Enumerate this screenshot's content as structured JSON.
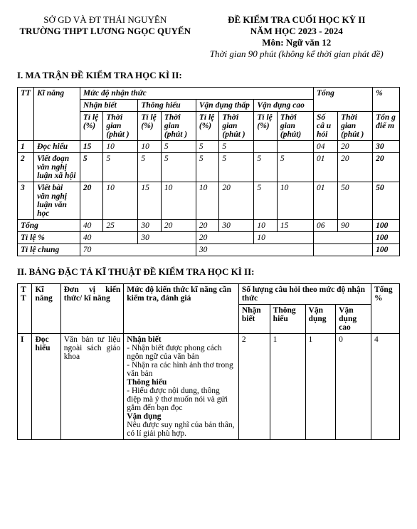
{
  "header": {
    "left_line1": "SỞ GD VÀ ĐT THÁI NGUYÊN",
    "left_line2": "TRƯỜNG THPT LƯƠNG NGỌC QUYẾN",
    "right_line1": "ĐỀ KIỂM TRA CUỐI HỌC  KỲ II",
    "right_line2": "NĂM HỌC 2023 - 2024",
    "right_line3": "Môn: Ngữ văn 12",
    "right_line4": "Thời gian 90 phút (không kể thời gian phát đề)"
  },
  "section1_title": "I. MA TRẬN ĐỀ KIỂM TRA HỌC KÌ II:",
  "t1": {
    "hdr_mucdo": "Mức độ nhận thức",
    "hdr_pct": "%",
    "hdr_nb": "Nhận biết",
    "hdr_th": "Thông hiểu",
    "hdr_vdt": "Vận   dụng thấp",
    "hdr_vdc": "Vận   dụng cao",
    "hdr_tong": "Tổng",
    "hdr_tongdiem": "Tổn g điể m",
    "col_tt": "TT",
    "col_kn": "Kĩ năng",
    "col_tile": "Tỉ lệ (%)",
    "col_tg": "Thời gian (phút )",
    "col_tg2": "Thời gian (phút)",
    "col_soc": "Số câ u hỏi",
    "rows": [
      {
        "tt": "1",
        "kn": "Đọc hiểu",
        "nb_tl": "15",
        "nb_tg": "10",
        "th_tl": "10",
        "th_tg": "5",
        "vdt_tl": "5",
        "vdt_tg": "5",
        "vdc_tl": "",
        "vdc_tg": "",
        "soc": "04",
        "tg": "20",
        "pct": "30"
      },
      {
        "tt": "2",
        "kn": "Viết đoạn văn nghị luận xã hội",
        "nb_tl": "5",
        "nb_tg": "5",
        "th_tl": "5",
        "th_tg": "5",
        "vdt_tl": "5",
        "vdt_tg": "5",
        "vdc_tl": "5",
        "vdc_tg": "5",
        "soc": "01",
        "tg": "20",
        "pct": "20"
      },
      {
        "tt": "3",
        "kn": "Viết bài văn nghị luận văn học",
        "nb_tl": "20",
        "nb_tg": "10",
        "th_tl": "15",
        "th_tg": "10",
        "vdt_tl": "10",
        "vdt_tg": "20",
        "vdc_tl": "5",
        "vdc_tg": "10",
        "soc": "01",
        "tg": "50",
        "pct": "50"
      }
    ],
    "tong_label": "Tổng",
    "tong": {
      "nb_tl": "40",
      "nb_tg": "25",
      "th_tl": "30",
      "th_tg": "20",
      "vdt_tl": "20",
      "vdt_tg": "30",
      "vdc_tl": "10",
      "vdc_tg": "15",
      "soc": "06",
      "tg": "90",
      "pct": "100"
    },
    "tile_label": "Tỉ lệ %",
    "tile": {
      "nb": "40",
      "th": "30",
      "vdt": "20",
      "vdc": "10",
      "pct": "100"
    },
    "tilechung_label": "Tỉ lệ chung",
    "tilechung": {
      "a": "70",
      "b": "30",
      "pct": "100"
    }
  },
  "section2_title": "II. BẢNG ĐẶC TẢ KĨ THUẬT ĐỀ KIỂM TRA HỌC KÌ II:",
  "t2": {
    "col_tt": "T T",
    "col_kn": "Kĩ năng",
    "col_dv": "Đơn vị kiến thức/ kĩ năng",
    "col_mucdo": "Mức độ kiến thức kĩ năng cần kiểm tra, đánh giá",
    "col_sl": "Số lượng câu hỏi theo mức độ nhận thức",
    "col_tong": "Tổng %",
    "sub_nb": "Nhận biết",
    "sub_th": "Thông hiểu",
    "sub_vd": "Vận dụng",
    "sub_vdc": "Vận dụng cao",
    "row": {
      "tt": "I",
      "kn": "Đọc hiểu",
      "dv": "Văn bản tư liệu ngoài sách giáo khoa",
      "md_nb_h": "Nhận biết",
      "md_nb_1": "- Nhận biết được phong cách ngôn ngữ của văn bản",
      "md_nb_2": "- Nhận ra các hình ảnh thơ trong văn bản",
      "md_th_h": "Thông hiểu",
      "md_th_1": "- Hiểu được nội dung, thông điệp mà ý thơ muốn nói và gửi gắm đến bạn đọc",
      "md_vd_h": "Vận dụng",
      "md_vd_1": "Nêu được suy nghĩ của bản thân, có lí giải phù hợp.",
      "nb": "2",
      "th": "1",
      "vd": "1",
      "vdc": "0",
      "tong": "4"
    }
  }
}
